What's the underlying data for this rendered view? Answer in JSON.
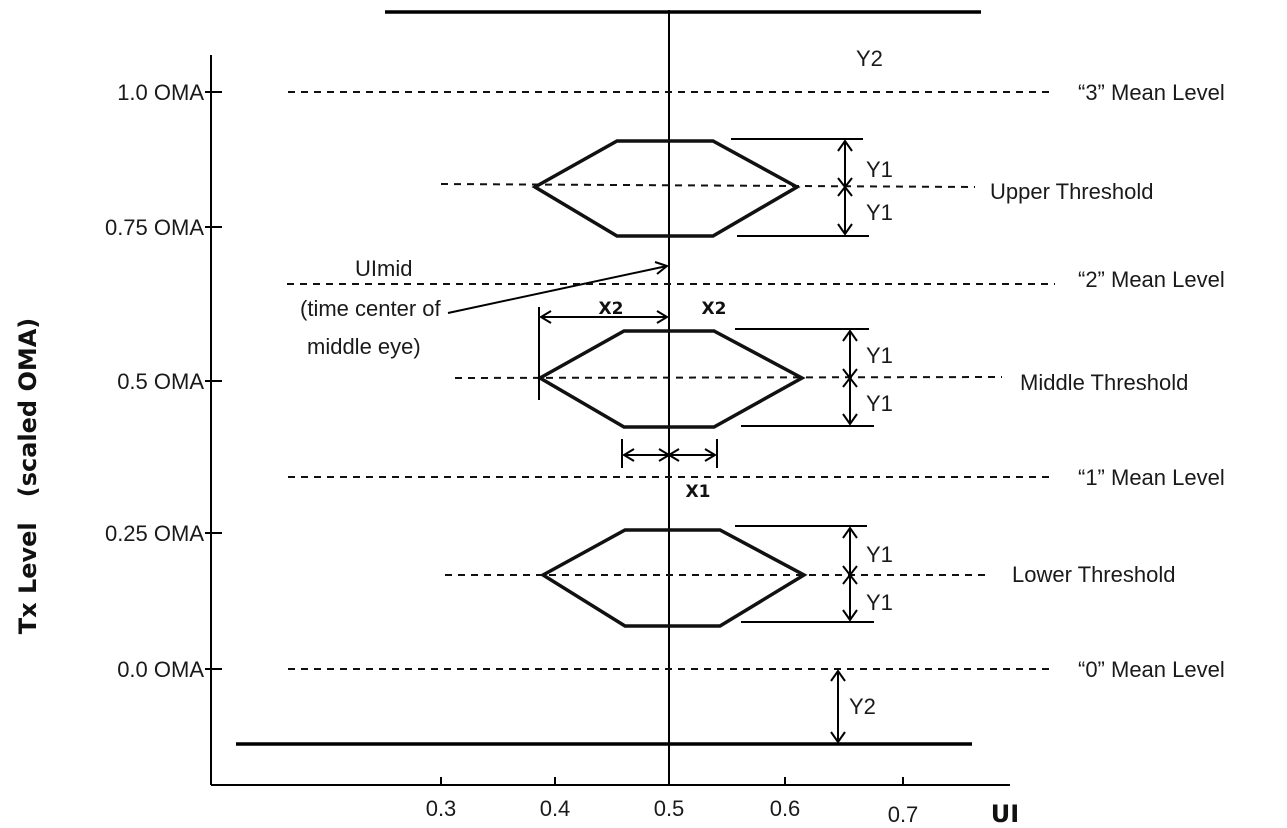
{
  "axes": {
    "y_title": "Tx Level   (scaled OMA)",
    "x_title": "UI",
    "y_ticks": [
      {
        "value": 1.0,
        "label": "1.0 OMA"
      },
      {
        "value": 0.75,
        "label": "0.75 OMA"
      },
      {
        "value": 0.5,
        "label": "0.5 OMA"
      },
      {
        "value": 0.25,
        "label": "0.25 OMA"
      },
      {
        "value": 0.0,
        "label": "0.0 OMA"
      }
    ],
    "x_ticks": [
      {
        "value": 0.3,
        "label": "0.3"
      },
      {
        "value": 0.4,
        "label": "0.4"
      },
      {
        "value": 0.5,
        "label": "0.5"
      },
      {
        "value": 0.6,
        "label": "0.6"
      },
      {
        "value": 0.7,
        "label": "0.7"
      }
    ]
  },
  "mean_levels": [
    {
      "value": 1.0,
      "label": "“3” Mean Level"
    },
    {
      "value": 0.667,
      "label": "“2” Mean Level"
    },
    {
      "value": 0.333,
      "label": "“1” Mean Level"
    },
    {
      "value": 0.0,
      "label": "“0” Mean Level"
    }
  ],
  "thresholds": [
    {
      "value": 0.833,
      "label": "Upper Threshold"
    },
    {
      "value": 0.5,
      "label": "Middle Threshold"
    },
    {
      "value": 0.167,
      "label": "Lower Threshold"
    }
  ],
  "annotations": {
    "y1": "Y1",
    "y2": "Y2",
    "x1": "X1",
    "x2": "X2",
    "uimid_line1": "UImid",
    "uimid_line2": "(time center of",
    "uimid_line3": "middle eye)"
  }
}
